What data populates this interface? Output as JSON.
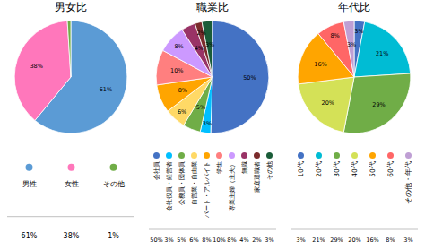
{
  "chart_data": [
    {
      "type": "pie",
      "title": "男女比",
      "categories": [
        "男性",
        "女性",
        "その他"
      ],
      "values": [
        61,
        38,
        1
      ],
      "value_labels": [
        "61%",
        "38%",
        "1%"
      ],
      "colors": [
        "#5b9bd5",
        "#ff77bb",
        "#70ad47"
      ],
      "data_labels": true,
      "legend": "bottom"
    },
    {
      "type": "pie",
      "title": "職業比",
      "categories": [
        "会社員",
        "会社役員・経営者",
        "公務員・団体員",
        "自営業・自由業",
        "パート・アルバイト",
        "学生",
        "専業主婦（主夫）",
        "無職",
        "家庭退職者",
        "その他"
      ],
      "values": [
        50,
        3,
        5,
        6,
        8,
        10,
        8,
        4,
        2,
        3
      ],
      "value_labels": [
        "50%",
        "3%",
        "5%",
        "6%",
        "8%",
        "10%",
        "8%",
        "4%",
        "2%",
        "3%"
      ],
      "colors": [
        "#4472c4",
        "#00bfff",
        "#70ad47",
        "#ffd966",
        "#ffa500",
        "#ff7f7f",
        "#cc99ff",
        "#993366",
        "#7b2c2c",
        "#1a5c38"
      ],
      "data_labels": true,
      "legend": "bottom"
    },
    {
      "type": "pie",
      "title": "年代比",
      "categories": [
        "10代",
        "20代",
        "30代",
        "40代",
        "50代",
        "60代",
        "その他・年代"
      ],
      "values": [
        3,
        21,
        29,
        20,
        16,
        8,
        3
      ],
      "value_labels": [
        "3%",
        "21%",
        "29%",
        "20%",
        "16%",
        "8%",
        "3%"
      ],
      "colors": [
        "#4472c4",
        "#00bcd4",
        "#70ad47",
        "#d4e157",
        "#ffa500",
        "#ff6666",
        "#bf9fd4"
      ],
      "data_labels": true,
      "legend": "bottom"
    }
  ]
}
